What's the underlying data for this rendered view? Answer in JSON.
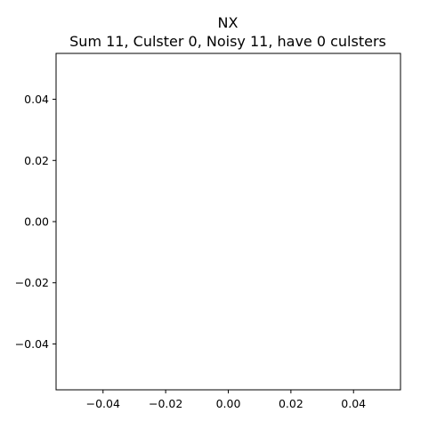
{
  "chart_data": {
    "type": "scatter",
    "title": "NX",
    "subtitle": "Sum 11, Culster 0, Noisy 11, have 0 culsters",
    "xlabel": "",
    "ylabel": "",
    "xlim": [
      -0.055,
      0.055
    ],
    "ylim": [
      -0.055,
      0.055
    ],
    "xticks": [
      -0.04,
      -0.02,
      0.0,
      0.02,
      0.04
    ],
    "yticks": [
      0.04,
      0.02,
      0.0,
      -0.02,
      -0.04
    ],
    "xtick_labels": [
      "−0.04",
      "−0.02",
      "0.00",
      "0.02",
      "0.04"
    ],
    "ytick_labels": [
      "0.04",
      "0.02",
      "0.00",
      "−0.02",
      "−0.04"
    ],
    "series": [],
    "grid": false,
    "legend": "none"
  }
}
